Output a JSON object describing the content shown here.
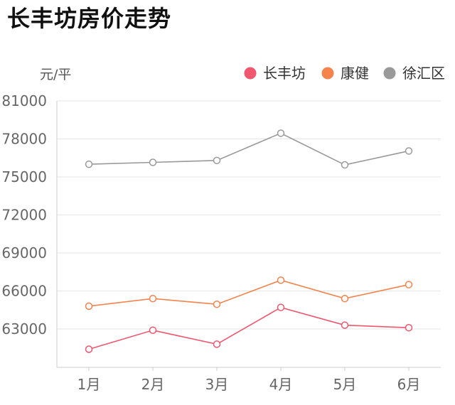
{
  "title": "长丰坊房价走势",
  "chart_data": {
    "type": "line",
    "title": "长丰坊房价走势",
    "ylabel": "元/平",
    "xlabel": "",
    "categories": [
      "1月",
      "2月",
      "3月",
      "4月",
      "5月",
      "6月"
    ],
    "ylim": [
      60000,
      81000
    ],
    "yticks": [
      81000,
      78000,
      75000,
      72000,
      69000,
      66000,
      63000
    ],
    "grid": true,
    "legend_position": "top-right",
    "series": [
      {
        "name": "长丰坊",
        "color": "#f0566e",
        "values": [
          61400,
          62900,
          61800,
          64700,
          63300,
          63100
        ]
      },
      {
        "name": "康健",
        "color": "#f5834b",
        "values": [
          64800,
          65400,
          64950,
          66850,
          65400,
          66500
        ]
      },
      {
        "name": "徐汇区",
        "color": "#999999",
        "values": [
          76000,
          76150,
          76300,
          78450,
          75950,
          77050
        ]
      }
    ]
  }
}
